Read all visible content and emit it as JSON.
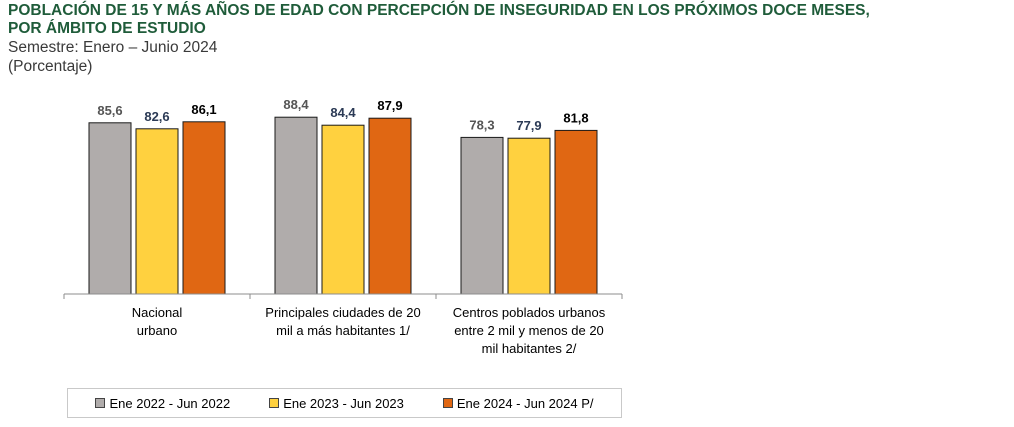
{
  "header": {
    "title_line1": "POBLACIÓN DE 15 Y MÁS AÑOS DE EDAD CON PERCEPCIÓN DE INSEGURIDAD EN LOS PRÓXIMOS DOCE MESES,",
    "title_line2": "POR ÁMBITO DE ESTUDIO",
    "subtitle": "Semestre: Enero – Junio 2024",
    "unit": "(Porcentaje)"
  },
  "chart_data": {
    "type": "bar",
    "title": "POBLACIÓN DE 15 Y MÁS AÑOS DE EDAD CON PERCEPCIÓN DE INSEGURIDAD EN LOS PRÓXIMOS DOCE MESES, POR ÁMBITO DE ESTUDIO",
    "subtitle": "Semestre: Enero – Junio 2024",
    "unit": "(Porcentaje)",
    "categories": [
      [
        "Nacional",
        "urbano"
      ],
      [
        "Principales ciudades de 20",
        "mil a más habitantes 1/"
      ],
      [
        "Centros poblados urbanos",
        "entre 2 mil y menos de 20",
        "mil habitantes 2/"
      ]
    ],
    "series": [
      {
        "name": "Ene 2022 - Jun 2022",
        "values": [
          85.6,
          88.4,
          78.3
        ],
        "labels": [
          "85,6",
          "88,4",
          "78,3"
        ],
        "color": "#b0acab",
        "label_color": "#555555"
      },
      {
        "name": "Ene 2023 - Jun 2023",
        "values": [
          82.6,
          84.4,
          77.9
        ],
        "labels": [
          "82,6",
          "84,4",
          "77,9"
        ],
        "color": "#ffd13f",
        "label_color": "#2b3a55"
      },
      {
        "name": "Ene 2024 - Jun 2024 P/",
        "values": [
          86.1,
          87.9,
          81.8
        ],
        "labels": [
          "86,1",
          "87,9",
          "81,8"
        ],
        "color": "#e06713",
        "label_color": "#000000"
      }
    ],
    "ylim": [
      0,
      100
    ],
    "grid": false,
    "legend_position": "bottom"
  }
}
